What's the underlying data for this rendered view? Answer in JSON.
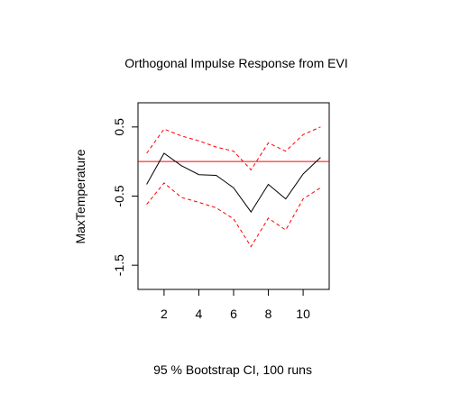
{
  "chart_data": {
    "type": "line",
    "title": "Orthogonal Impulse Response from EVI",
    "ylabel": "MaxTemperature",
    "xlabel": "95 % Bootstrap CI,  100 runs",
    "x": [
      1,
      2,
      3,
      4,
      5,
      6,
      7,
      8,
      9,
      10,
      11
    ],
    "xlim": [
      0.5,
      11.5
    ],
    "ylim": [
      -1.85,
      0.85
    ],
    "xticks": [
      2,
      4,
      6,
      8,
      10
    ],
    "xtick_labels": [
      "2",
      "4",
      "6",
      "8",
      "10"
    ],
    "yticks": [
      0.5,
      -0.5,
      -1.5
    ],
    "ytick_labels": [
      "0.5",
      "-0.5",
      "-1.5"
    ],
    "zero_line": 0,
    "grid": false,
    "series": [
      {
        "role": "response",
        "color": "#000000",
        "dashed": false,
        "values": [
          -0.33,
          0.12,
          -0.06,
          -0.19,
          -0.2,
          -0.38,
          -0.73,
          -0.33,
          -0.54,
          -0.18,
          0.06
        ]
      },
      {
        "role": "upper",
        "color": "#ff0000",
        "dashed": true,
        "values": [
          0.12,
          0.47,
          0.37,
          0.3,
          0.21,
          0.15,
          -0.12,
          0.27,
          0.15,
          0.39,
          0.5
        ]
      },
      {
        "role": "lower",
        "color": "#ff0000",
        "dashed": true,
        "values": [
          -0.62,
          -0.31,
          -0.52,
          -0.59,
          -0.67,
          -0.83,
          -1.23,
          -0.82,
          -0.99,
          -0.54,
          -0.38
        ]
      }
    ],
    "zero_line_color": "#ff0000"
  }
}
